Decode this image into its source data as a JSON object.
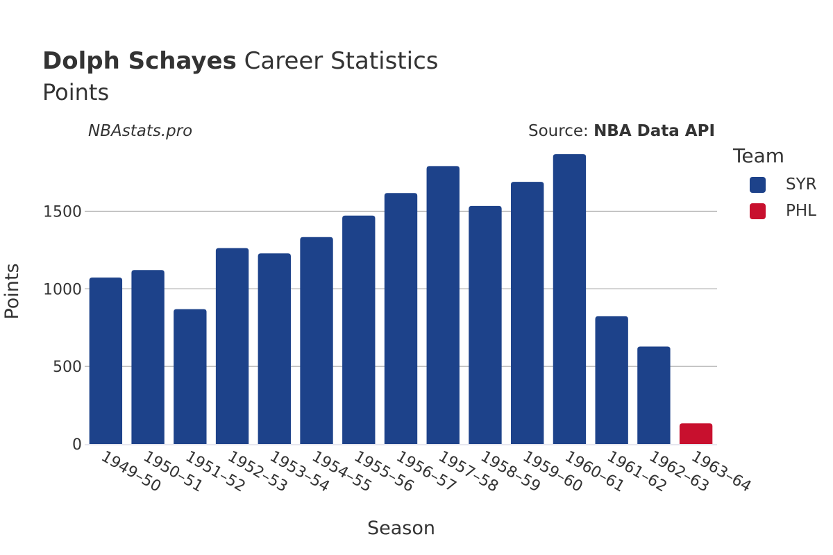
{
  "header": {
    "title_bold": "Dolph Schayes",
    "title_rest": " Career Statistics",
    "subtitle": "Points",
    "watermark": "NBAstats.pro",
    "source_prefix": "Source: ",
    "source_name": "NBA Data API"
  },
  "legend": {
    "title": "Team",
    "items": [
      {
        "label": "SYR",
        "color": "#1d428a"
      },
      {
        "label": "PHL",
        "color": "#c8102e"
      }
    ]
  },
  "chart_data": {
    "type": "bar",
    "xlabel": "Season",
    "ylabel": "Points",
    "ylim": [
      0,
      1940
    ],
    "yticks": [
      0,
      500,
      1000,
      1500
    ],
    "grid": true,
    "legend_position": "right",
    "categories": [
      "1949–50",
      "1950–51",
      "1951–52",
      "1952–53",
      "1953–54",
      "1954–55",
      "1955–56",
      "1956–57",
      "1957–58",
      "1958–59",
      "1959–60",
      "1960–61",
      "1961–62",
      "1962–63",
      "1963–64"
    ],
    "series": [
      {
        "name": "SYR",
        "color": "#1d428a",
        "values": [
          1072,
          1121,
          869,
          1262,
          1228,
          1333,
          1472,
          1617,
          1791,
          1534,
          1689,
          1868,
          823,
          628,
          null
        ]
      },
      {
        "name": "PHL",
        "color": "#c8102e",
        "values": [
          null,
          null,
          null,
          null,
          null,
          null,
          null,
          null,
          null,
          null,
          null,
          null,
          null,
          null,
          133
        ]
      }
    ]
  }
}
